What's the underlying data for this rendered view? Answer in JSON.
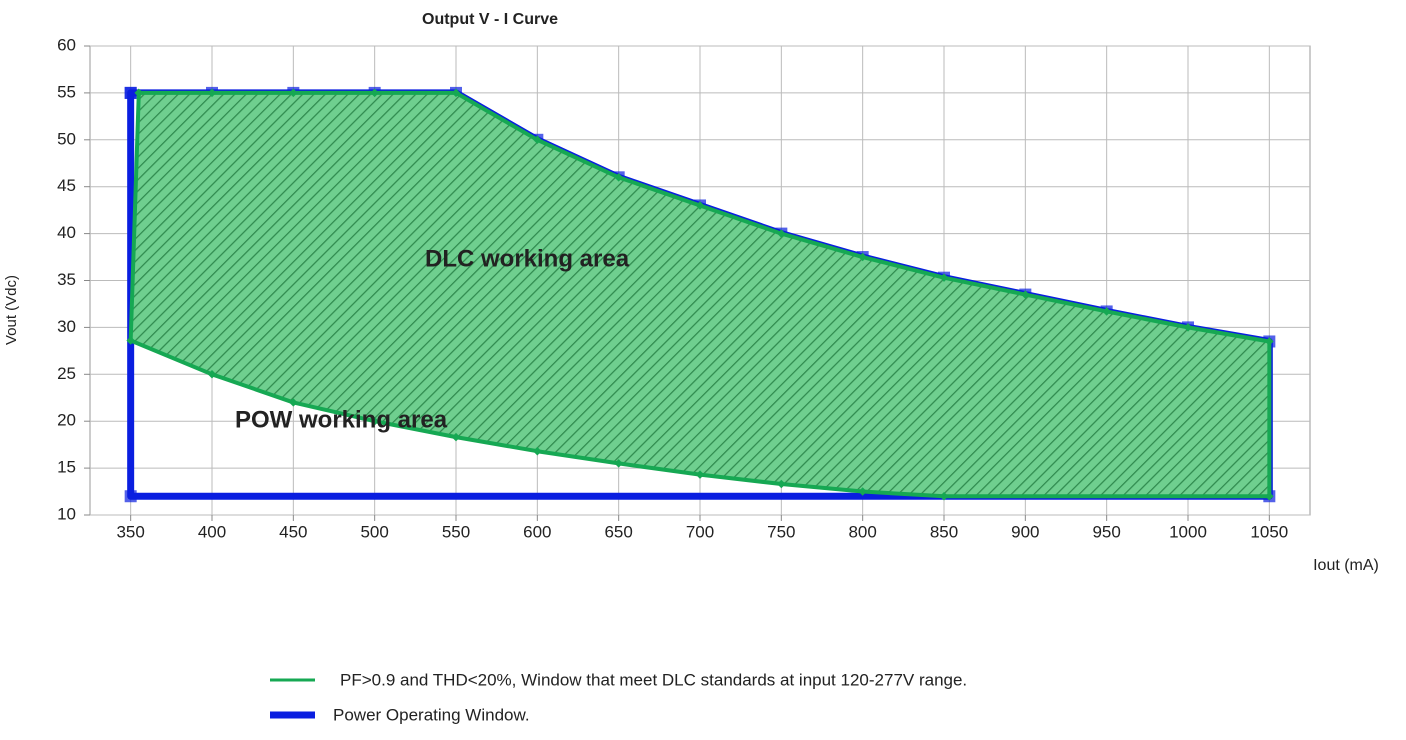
{
  "chart_data": {
    "type": "area-outline",
    "title": "Output V - I Curve",
    "ylabel": "Vout (Vdc)",
    "xlabel": "Iout (mA)",
    "annotations": [
      "DLC working area",
      "POW working area"
    ],
    "xlim": [
      325,
      1075
    ],
    "xticks": [
      350,
      400,
      450,
      500,
      550,
      600,
      650,
      700,
      750,
      800,
      850,
      900,
      950,
      1000,
      1050
    ],
    "ylim": [
      10,
      60
    ],
    "yticks": [
      10,
      15,
      20,
      25,
      30,
      35,
      40,
      45,
      50,
      55,
      60
    ],
    "grid": true,
    "series": [
      {
        "name": "Power Operating Window.",
        "color": "#0a1ee0",
        "x": [
          350,
          400,
          450,
          500,
          550,
          600,
          650,
          700,
          750,
          800,
          850,
          900,
          950,
          1000,
          1050,
          1050,
          350,
          350
        ],
        "values": [
          55,
          55,
          55,
          55,
          55,
          50,
          46,
          43,
          40,
          37.5,
          35.3,
          33.5,
          31.7,
          30,
          28.5,
          12,
          12,
          55
        ]
      },
      {
        "name": "PF>0.9 and THD<20%, Window that meet DLC standards at input 120-277V range.",
        "color": "#16a853",
        "x": [
          355,
          400,
          450,
          500,
          550,
          600,
          650,
          700,
          750,
          800,
          850,
          900,
          950,
          1000,
          1050,
          1050,
          850,
          800,
          750,
          700,
          650,
          600,
          550,
          500,
          450,
          400,
          350,
          355
        ],
        "values": [
          55,
          55,
          55,
          55,
          55,
          50,
          46,
          43,
          40,
          37.5,
          35.3,
          33.5,
          31.7,
          30,
          28.5,
          12,
          12,
          12.5,
          13.3,
          14.3,
          15.5,
          16.8,
          18.3,
          20,
          22,
          25,
          28.6,
          55
        ]
      }
    ]
  }
}
